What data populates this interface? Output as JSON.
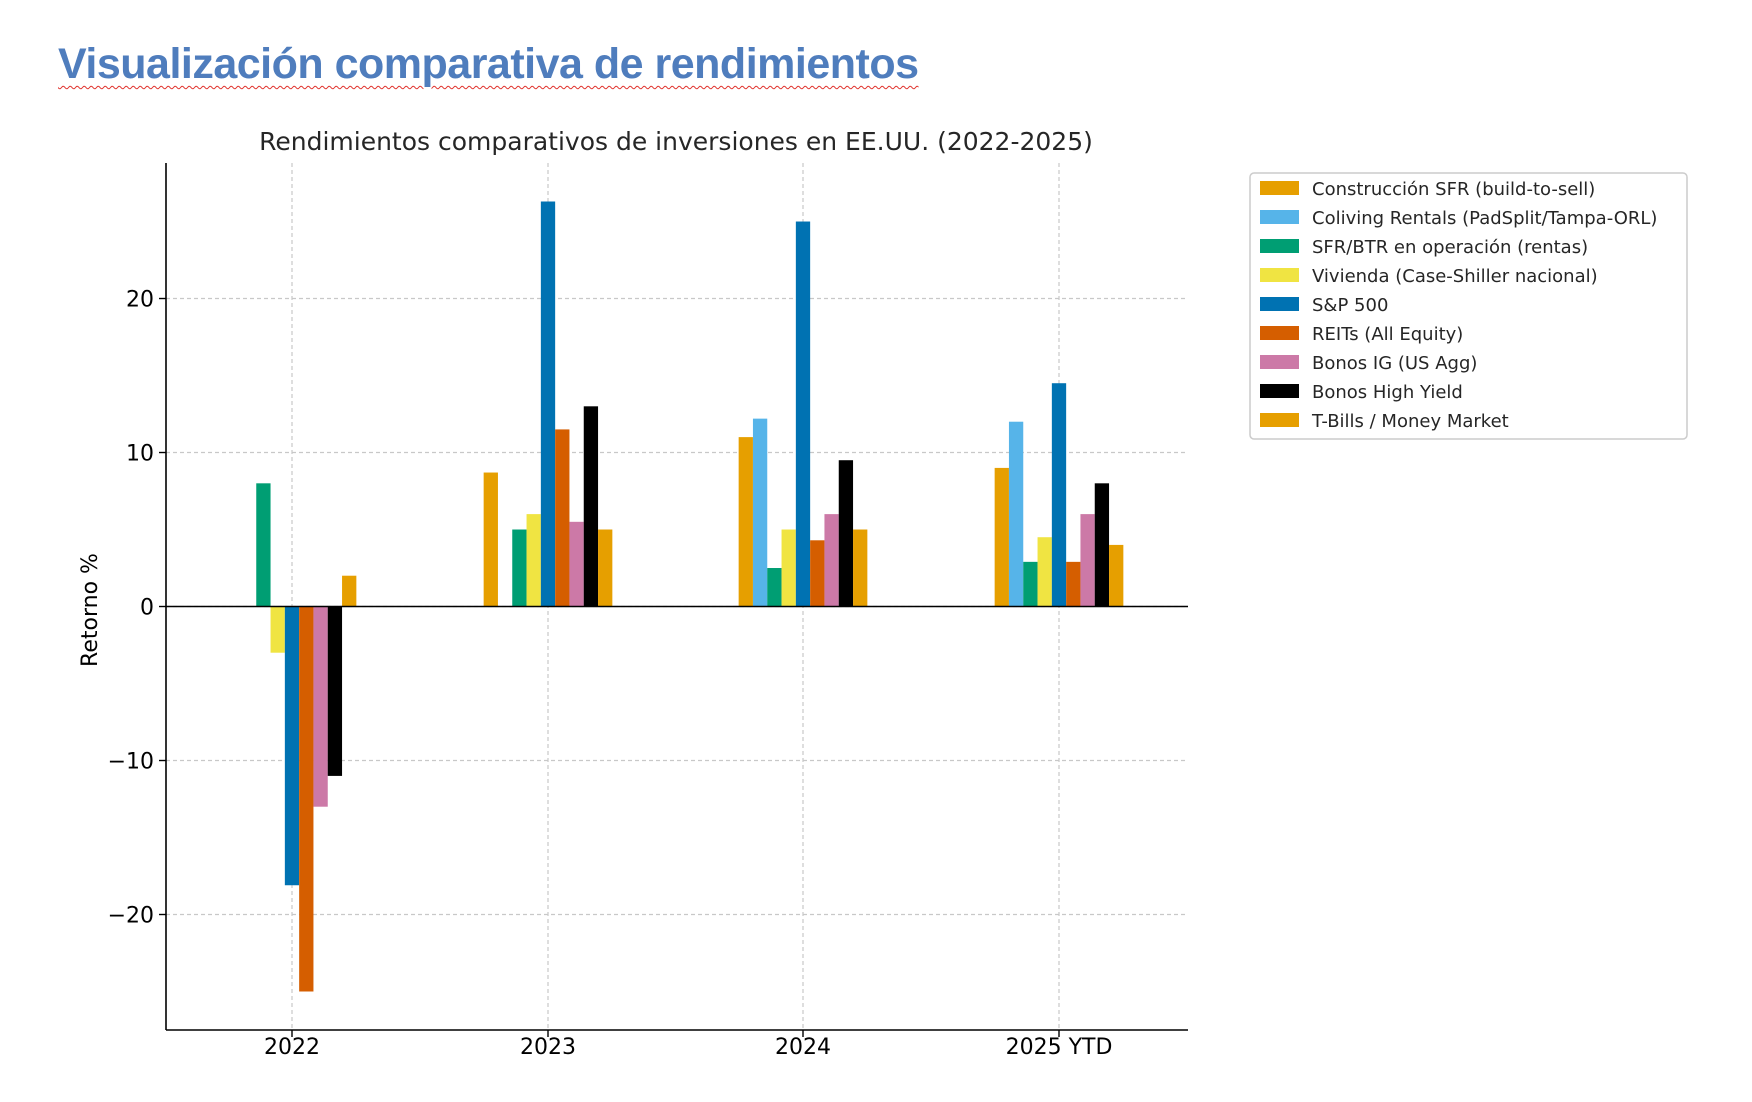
{
  "page": {
    "heading": "Visualización comparativa de rendimientos"
  },
  "chart_data": {
    "type": "bar",
    "title": "Rendimientos comparativos de inversiones en EE.UU. (2022-2025)",
    "xlabel": "",
    "ylabel": "Retorno %",
    "categories": [
      "2022",
      "2023",
      "2024",
      "2025 YTD"
    ],
    "ylim": [
      -27.5,
      28.8
    ],
    "yticks": [
      -20,
      -10,
      0,
      10,
      20
    ],
    "ytick_labels": [
      "−20",
      "−10",
      "0",
      "10",
      "20"
    ],
    "grid": true,
    "legend_position": "outside-top-right",
    "series": [
      {
        "name": "Construcción SFR (build-to-sell)",
        "color": "#E69F00",
        "values": [
          null,
          8.7,
          11.0,
          9.0
        ]
      },
      {
        "name": "Coliving Rentals (PadSplit/Tampa-ORL)",
        "color": "#56B4E9",
        "values": [
          null,
          null,
          12.2,
          12.0
        ]
      },
      {
        "name": "SFR/BTR en operación (rentas)",
        "color": "#009E73",
        "values": [
          8.0,
          5.0,
          2.5,
          2.9
        ]
      },
      {
        "name": "Vivienda (Case-Shiller nacional)",
        "color": "#F0E442",
        "values": [
          -3.0,
          6.0,
          5.0,
          4.5
        ]
      },
      {
        "name": "S&P 500",
        "color": "#0072B2",
        "values": [
          -18.1,
          26.3,
          25.0,
          14.5
        ]
      },
      {
        "name": "REITs (All Equity)",
        "color": "#D55E00",
        "values": [
          -25.0,
          11.5,
          4.3,
          2.9
        ]
      },
      {
        "name": "Bonos IG (US Agg)",
        "color": "#CC79A7",
        "values": [
          -13.0,
          5.5,
          6.0,
          6.0
        ]
      },
      {
        "name": "Bonos High Yield",
        "color": "#000000",
        "values": [
          -11.0,
          13.0,
          9.5,
          8.0
        ]
      },
      {
        "name": "T-Bills / Money Market",
        "color": "#E69F00",
        "values": [
          2.0,
          5.0,
          5.0,
          4.0
        ]
      }
    ]
  }
}
